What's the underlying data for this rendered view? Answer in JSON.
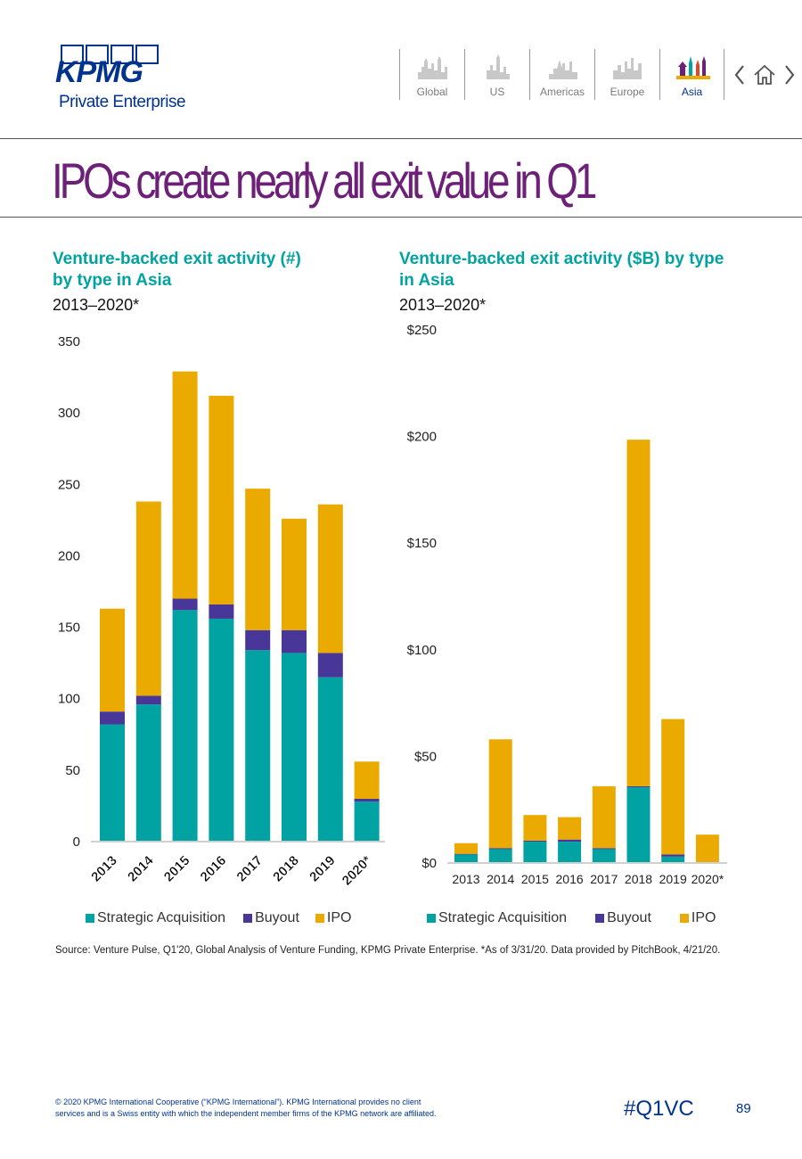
{
  "header": {
    "logo_text": "KPMG",
    "logo_sub": "Private Enterprise",
    "nav": [
      "Global",
      "US",
      "Americas",
      "Europe",
      "Asia"
    ],
    "active_nav": "Asia"
  },
  "page_title": "IPOs create nearly all exit value in Q1",
  "colors": {
    "strategic": "#00a3a1",
    "buyout": "#483698",
    "ipo": "#eaaa00",
    "kpmg_blue": "#00338d",
    "title_purple": "#6d2077"
  },
  "chart_left": {
    "title_line1": "Venture-backed exit activity (#)",
    "title_line2": "by type in Asia",
    "subtitle": "2013–2020*"
  },
  "chart_right": {
    "title_line1": "Venture-backed exit activity ($B) by type",
    "title_line2": "in Asia",
    "subtitle": "2013–2020*"
  },
  "chart_data": [
    {
      "type": "bar",
      "stacked": true,
      "title": "Venture-backed exit activity (#) by type in Asia",
      "subtitle": "2013–2020*",
      "categories": [
        "2013",
        "2014",
        "2015",
        "2016",
        "2017",
        "2018",
        "2019",
        "2020*"
      ],
      "series": [
        {
          "name": "Strategic Acquisition",
          "values": [
            82,
            96,
            162,
            156,
            134,
            132,
            115,
            28
          ]
        },
        {
          "name": "Buyout",
          "values": [
            9,
            6,
            8,
            10,
            14,
            16,
            17,
            2
          ]
        },
        {
          "name": "IPO",
          "values": [
            72,
            136,
            159,
            146,
            99,
            78,
            104,
            26
          ]
        }
      ],
      "yticks": [
        "0",
        "50",
        "100",
        "150",
        "200",
        "250",
        "300",
        "350"
      ],
      "ylim": [
        0,
        350
      ],
      "legend": "bottom",
      "grid": false
    },
    {
      "type": "bar",
      "stacked": true,
      "title": "Venture-backed exit activity ($B) by type in Asia",
      "subtitle": "2013–2020*",
      "categories": [
        "2013",
        "2014",
        "2015",
        "2016",
        "2017",
        "2018",
        "2019",
        "2020*"
      ],
      "series": [
        {
          "name": "Strategic Acquisition",
          "values": [
            4,
            6.5,
            10,
            10,
            6.5,
            35.5,
            3,
            0.2
          ]
        },
        {
          "name": "Buyout",
          "values": [
            0.3,
            0.5,
            0.5,
            1,
            0.5,
            0.5,
            1,
            0.1
          ]
        },
        {
          "name": "IPO",
          "values": [
            5,
            51,
            12,
            10.5,
            29,
            162.5,
            63.5,
            13
          ]
        }
      ],
      "yticks": [
        "$0",
        "$50",
        "$100",
        "$150",
        "$200",
        "$250"
      ],
      "ylim": [
        0,
        250
      ],
      "legend": "bottom",
      "grid": false
    }
  ],
  "legend_labels": [
    "Strategic Acquisition",
    "Buyout",
    "IPO"
  ],
  "source_note": "Source: Venture Pulse, Q1'20, Global Analysis of Venture Funding, KPMG Private Enterprise. *As of 3/31/20. Data provided by PitchBook, 4/21/20.",
  "footer": {
    "copyright_line1": "© 2020 KPMG International Cooperative (“KPMG International”). KPMG International provides no client",
    "copyright_line2": "services and is a Swiss entity with which the independent member firms of the KPMG network are affiliated.",
    "hashtag": "#Q1VC",
    "page_number": "89"
  }
}
